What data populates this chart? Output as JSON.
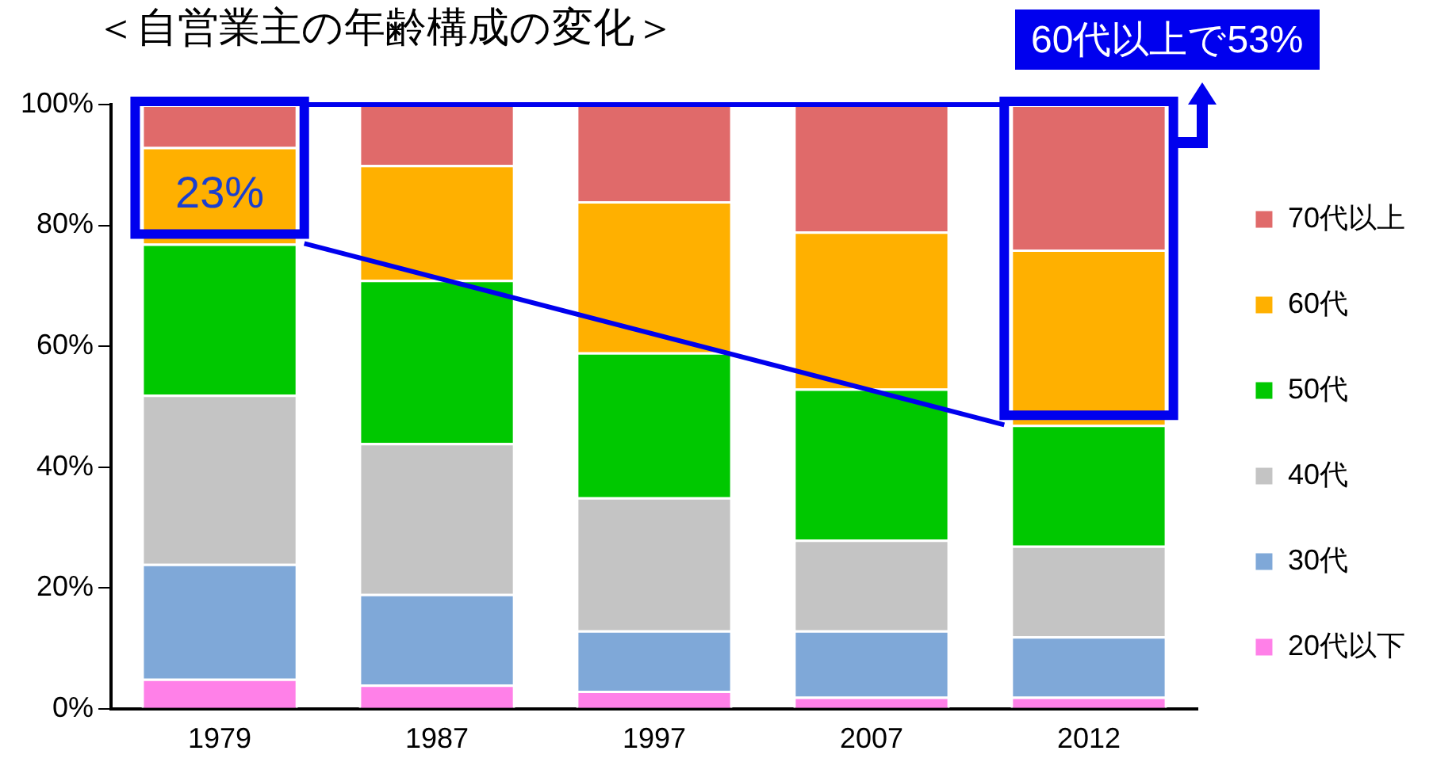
{
  "chart_data": {
    "type": "bar",
    "stacked": true,
    "title": "＜自営業主の年齢構成の変化＞",
    "categories": [
      "1979",
      "1987",
      "1997",
      "2007",
      "2012"
    ],
    "series": [
      {
        "name": "20代以下",
        "color": "#ff80e8",
        "values": [
          5,
          4,
          3,
          2,
          2
        ]
      },
      {
        "name": "30代",
        "color": "#7fa8d8",
        "values": [
          19,
          15,
          10,
          11,
          10
        ]
      },
      {
        "name": "40代",
        "color": "#c4c4c4",
        "values": [
          28,
          25,
          22,
          15,
          15
        ]
      },
      {
        "name": "50代",
        "color": "#00c800",
        "values": [
          25,
          27,
          24,
          25,
          20
        ]
      },
      {
        "name": "60代",
        "color": "#ffb000",
        "values": [
          16,
          19,
          25,
          26,
          29
        ]
      },
      {
        "name": "70代以上",
        "color": "#e06a6a",
        "values": [
          7,
          10,
          16,
          21,
          24
        ]
      }
    ],
    "ylim": [
      0,
      100
    ],
    "yticks": [
      {
        "value": 0,
        "label": "0%"
      },
      {
        "value": 20,
        "label": "20%"
      },
      {
        "value": 40,
        "label": "40%"
      },
      {
        "value": 60,
        "label": "60%"
      },
      {
        "value": 80,
        "label": "80%"
      },
      {
        "value": 100,
        "label": "100%"
      }
    ],
    "grid": false,
    "legend": "right",
    "annotations": [
      "23%",
      "60代以上で53%"
    ]
  }
}
